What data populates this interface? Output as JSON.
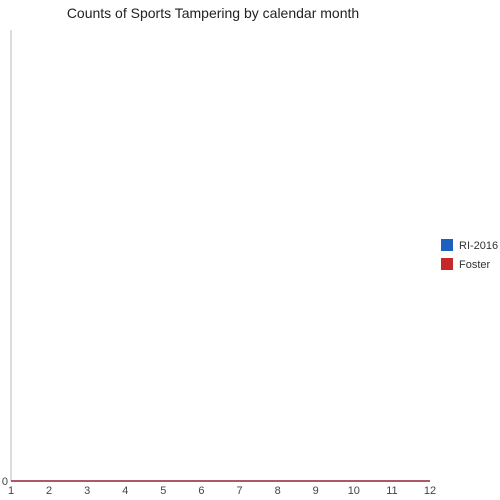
{
  "chart_data": {
    "type": "line",
    "title": "Counts of Sports Tampering by calendar month",
    "xlabel": "",
    "ylabel": "",
    "x": [
      1,
      2,
      3,
      4,
      5,
      6,
      7,
      8,
      9,
      10,
      11,
      12
    ],
    "x_tick_labels": [
      "1",
      "2",
      "3",
      "4",
      "5",
      "6",
      "7",
      "8",
      "9",
      "10",
      "11",
      "12"
    ],
    "y_tick_labels": [
      "0"
    ],
    "ylim": [
      0,
      1
    ],
    "xlim": [
      1,
      12
    ],
    "grid": false,
    "legend_position": "right",
    "series": [
      {
        "name": "RI-2016",
        "color": "#1f5fbf",
        "values": [
          0,
          0,
          0,
          0,
          0,
          0,
          0,
          0,
          0,
          0,
          0,
          0
        ]
      },
      {
        "name": "Foster",
        "color": "#c62828",
        "values": [
          0,
          0,
          0,
          0,
          0,
          0,
          0,
          0,
          0,
          0,
          0,
          0
        ]
      }
    ]
  }
}
